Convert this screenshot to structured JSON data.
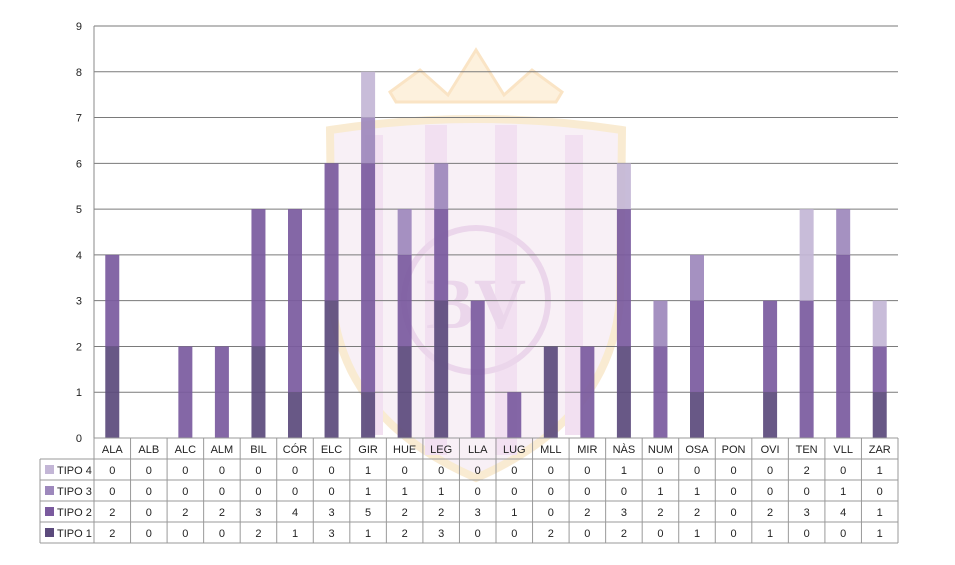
{
  "chart_data": {
    "type": "bar",
    "stacked": true,
    "categories": [
      "ALA",
      "ALB",
      "ALC",
      "ALM",
      "BIL",
      "CÓR",
      "ELC",
      "GIR",
      "HUE",
      "LEG",
      "LLA",
      "LUG",
      "MLL",
      "MIR",
      "NÀS",
      "NUM",
      "OSA",
      "PON",
      "OVI",
      "TEN",
      "VLL",
      "ZAR"
    ],
    "series": [
      {
        "name": "TIPO 1",
        "color": "#5b4a7c",
        "values": [
          2,
          0,
          0,
          0,
          2,
          1,
          3,
          1,
          2,
          3,
          0,
          0,
          2,
          0,
          2,
          0,
          1,
          0,
          1,
          0,
          0,
          1
        ]
      },
      {
        "name": "TIPO 2",
        "color": "#7a5a9e",
        "values": [
          2,
          0,
          2,
          2,
          3,
          4,
          3,
          5,
          2,
          2,
          3,
          1,
          0,
          2,
          3,
          2,
          2,
          0,
          2,
          3,
          4,
          1
        ]
      },
      {
        "name": "TIPO 3",
        "color": "#9d88bc",
        "values": [
          0,
          0,
          0,
          0,
          0,
          0,
          0,
          1,
          1,
          1,
          0,
          0,
          0,
          0,
          0,
          1,
          1,
          0,
          0,
          0,
          1,
          0
        ]
      },
      {
        "name": "TIPO 4",
        "color": "#c3b6d6",
        "values": [
          0,
          0,
          0,
          0,
          0,
          0,
          0,
          1,
          0,
          0,
          0,
          0,
          0,
          0,
          1,
          0,
          0,
          0,
          0,
          2,
          0,
          1
        ]
      }
    ],
    "ylim": [
      0,
      9
    ],
    "yticks": [
      0,
      1,
      2,
      3,
      4,
      5,
      6,
      7,
      8,
      9
    ],
    "grid": true,
    "legend": "data table below chart",
    "table_row_order": [
      "TIPO 4",
      "TIPO 3",
      "TIPO 2",
      "TIPO 1"
    ]
  },
  "watermark": {
    "text": "BV"
  }
}
